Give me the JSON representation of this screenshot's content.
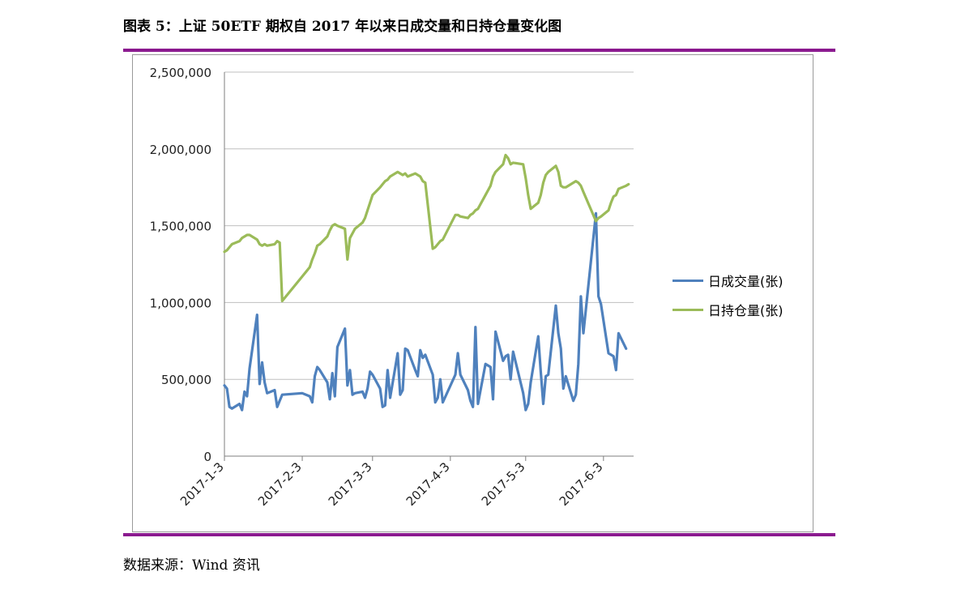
{
  "figure": {
    "title": "图表 5：上证 50ETF 期权自 2017 年以来日成交量和日持仓量变化图",
    "source": "数据来源：Wind 资讯"
  },
  "colors": {
    "accent": "#8b1a8f",
    "volume": "#4f81bd",
    "open_interest": "#9bbb59",
    "grid": "#bfbfbf",
    "axis": "#7f7f7f"
  },
  "chart_data": {
    "type": "line",
    "title": "",
    "xlabel": "",
    "ylabel": "",
    "ylim": [
      0,
      2500000
    ],
    "yticks": [
      "0",
      "500,000",
      "1,000,000",
      "1,500,000",
      "2,000,000",
      "2,500,000"
    ],
    "ytick_values": [
      0,
      500000,
      1000000,
      1500000,
      2000000,
      2500000
    ],
    "xlim": [
      "2017-01-03",
      "2017-06-15"
    ],
    "xticks": [
      "2017-1-3",
      "2017-2-3",
      "2017-3-3",
      "2017-4-3",
      "2017-5-3",
      "2017-6-3"
    ],
    "xtick_dates": [
      "2017-01-03",
      "2017-02-03",
      "2017-03-03",
      "2017-04-03",
      "2017-05-03",
      "2017-06-03"
    ],
    "grid": "horizontal",
    "legend": "right",
    "series": [
      {
        "name": "日成交量(张)",
        "color": "#4f81bd",
        "points": [
          [
            "2017-01-03",
            460000
          ],
          [
            "2017-01-04",
            440000
          ],
          [
            "2017-01-05",
            320000
          ],
          [
            "2017-01-06",
            310000
          ],
          [
            "2017-01-09",
            340000
          ],
          [
            "2017-01-10",
            300000
          ],
          [
            "2017-01-11",
            420000
          ],
          [
            "2017-01-12",
            390000
          ],
          [
            "2017-01-13",
            570000
          ],
          [
            "2017-01-16",
            920000
          ],
          [
            "2017-01-17",
            470000
          ],
          [
            "2017-01-18",
            610000
          ],
          [
            "2017-01-19",
            480000
          ],
          [
            "2017-01-20",
            410000
          ],
          [
            "2017-01-23",
            430000
          ],
          [
            "2017-01-24",
            320000
          ],
          [
            "2017-01-25",
            360000
          ],
          [
            "2017-01-26",
            400000
          ],
          [
            "2017-02-03",
            410000
          ],
          [
            "2017-02-06",
            390000
          ],
          [
            "2017-02-07",
            350000
          ],
          [
            "2017-02-08",
            520000
          ],
          [
            "2017-02-09",
            580000
          ],
          [
            "2017-02-10",
            560000
          ],
          [
            "2017-02-13",
            480000
          ],
          [
            "2017-02-14",
            370000
          ],
          [
            "2017-02-15",
            540000
          ],
          [
            "2017-02-16",
            390000
          ],
          [
            "2017-02-17",
            710000
          ],
          [
            "2017-02-20",
            830000
          ],
          [
            "2017-02-21",
            460000
          ],
          [
            "2017-02-22",
            560000
          ],
          [
            "2017-02-23",
            400000
          ],
          [
            "2017-02-24",
            410000
          ],
          [
            "2017-02-27",
            420000
          ],
          [
            "2017-02-28",
            380000
          ],
          [
            "2017-03-01",
            440000
          ],
          [
            "2017-03-02",
            550000
          ],
          [
            "2017-03-03",
            530000
          ],
          [
            "2017-03-06",
            440000
          ],
          [
            "2017-03-07",
            320000
          ],
          [
            "2017-03-08",
            330000
          ],
          [
            "2017-03-09",
            560000
          ],
          [
            "2017-03-10",
            380000
          ],
          [
            "2017-03-13",
            670000
          ],
          [
            "2017-03-14",
            400000
          ],
          [
            "2017-03-15",
            430000
          ],
          [
            "2017-03-16",
            700000
          ],
          [
            "2017-03-17",
            690000
          ],
          [
            "2017-03-20",
            560000
          ],
          [
            "2017-03-21",
            520000
          ],
          [
            "2017-03-22",
            690000
          ],
          [
            "2017-03-23",
            640000
          ],
          [
            "2017-03-24",
            660000
          ],
          [
            "2017-03-27",
            530000
          ],
          [
            "2017-03-28",
            350000
          ],
          [
            "2017-03-29",
            380000
          ],
          [
            "2017-03-30",
            500000
          ],
          [
            "2017-03-31",
            350000
          ],
          [
            "2017-04-05",
            530000
          ],
          [
            "2017-04-06",
            670000
          ],
          [
            "2017-04-07",
            530000
          ],
          [
            "2017-04-10",
            430000
          ],
          [
            "2017-04-11",
            360000
          ],
          [
            "2017-04-12",
            320000
          ],
          [
            "2017-04-13",
            840000
          ],
          [
            "2017-04-14",
            340000
          ],
          [
            "2017-04-17",
            600000
          ],
          [
            "2017-04-18",
            590000
          ],
          [
            "2017-04-19",
            580000
          ],
          [
            "2017-04-20",
            370000
          ],
          [
            "2017-04-21",
            810000
          ],
          [
            "2017-04-24",
            620000
          ],
          [
            "2017-04-25",
            650000
          ],
          [
            "2017-04-26",
            660000
          ],
          [
            "2017-04-27",
            500000
          ],
          [
            "2017-04-28",
            680000
          ],
          [
            "2017-05-02",
            410000
          ],
          [
            "2017-05-03",
            300000
          ],
          [
            "2017-05-04",
            340000
          ],
          [
            "2017-05-05",
            480000
          ],
          [
            "2017-05-08",
            780000
          ],
          [
            "2017-05-09",
            550000
          ],
          [
            "2017-05-10",
            340000
          ],
          [
            "2017-05-11",
            520000
          ],
          [
            "2017-05-12",
            530000
          ],
          [
            "2017-05-15",
            980000
          ],
          [
            "2017-05-16",
            800000
          ],
          [
            "2017-05-17",
            700000
          ],
          [
            "2017-05-18",
            440000
          ],
          [
            "2017-05-19",
            520000
          ],
          [
            "2017-05-22",
            360000
          ],
          [
            "2017-05-23",
            400000
          ],
          [
            "2017-05-24",
            600000
          ],
          [
            "2017-05-25",
            1040000
          ],
          [
            "2017-05-26",
            800000
          ],
          [
            "2017-05-31",
            1580000
          ],
          [
            "2017-06-01",
            1040000
          ],
          [
            "2017-06-02",
            990000
          ],
          [
            "2017-06-05",
            670000
          ],
          [
            "2017-06-06",
            660000
          ],
          [
            "2017-06-07",
            650000
          ],
          [
            "2017-06-08",
            560000
          ],
          [
            "2017-06-09",
            800000
          ],
          [
            "2017-06-12",
            700000
          ]
        ]
      },
      {
        "name": "日持仓量(张)",
        "color": "#9bbb59",
        "points": [
          [
            "2017-01-03",
            1330000
          ],
          [
            "2017-01-04",
            1340000
          ],
          [
            "2017-01-05",
            1360000
          ],
          [
            "2017-01-06",
            1380000
          ],
          [
            "2017-01-09",
            1400000
          ],
          [
            "2017-01-10",
            1420000
          ],
          [
            "2017-01-11",
            1430000
          ],
          [
            "2017-01-12",
            1440000
          ],
          [
            "2017-01-13",
            1440000
          ],
          [
            "2017-01-16",
            1410000
          ],
          [
            "2017-01-17",
            1380000
          ],
          [
            "2017-01-18",
            1370000
          ],
          [
            "2017-01-19",
            1380000
          ],
          [
            "2017-01-20",
            1370000
          ],
          [
            "2017-01-23",
            1380000
          ],
          [
            "2017-01-24",
            1400000
          ],
          [
            "2017-01-25",
            1390000
          ],
          [
            "2017-01-26",
            1010000
          ],
          [
            "2017-02-03",
            1170000
          ],
          [
            "2017-02-06",
            1230000
          ],
          [
            "2017-02-07",
            1280000
          ],
          [
            "2017-02-08",
            1320000
          ],
          [
            "2017-02-09",
            1370000
          ],
          [
            "2017-02-10",
            1380000
          ],
          [
            "2017-02-13",
            1430000
          ],
          [
            "2017-02-14",
            1470000
          ],
          [
            "2017-02-15",
            1500000
          ],
          [
            "2017-02-16",
            1510000
          ],
          [
            "2017-02-17",
            1500000
          ],
          [
            "2017-02-20",
            1480000
          ],
          [
            "2017-02-21",
            1280000
          ],
          [
            "2017-02-22",
            1420000
          ],
          [
            "2017-02-23",
            1450000
          ],
          [
            "2017-02-24",
            1480000
          ],
          [
            "2017-02-27",
            1520000
          ],
          [
            "2017-02-28",
            1550000
          ],
          [
            "2017-03-01",
            1600000
          ],
          [
            "2017-03-02",
            1650000
          ],
          [
            "2017-03-03",
            1700000
          ],
          [
            "2017-03-06",
            1750000
          ],
          [
            "2017-03-07",
            1770000
          ],
          [
            "2017-03-08",
            1790000
          ],
          [
            "2017-03-09",
            1800000
          ],
          [
            "2017-03-10",
            1820000
          ],
          [
            "2017-03-13",
            1850000
          ],
          [
            "2017-03-14",
            1840000
          ],
          [
            "2017-03-15",
            1830000
          ],
          [
            "2017-03-16",
            1840000
          ],
          [
            "2017-03-17",
            1820000
          ],
          [
            "2017-03-20",
            1840000
          ],
          [
            "2017-03-21",
            1830000
          ],
          [
            "2017-03-22",
            1820000
          ],
          [
            "2017-03-23",
            1790000
          ],
          [
            "2017-03-24",
            1780000
          ],
          [
            "2017-03-27",
            1350000
          ],
          [
            "2017-03-28",
            1360000
          ],
          [
            "2017-03-29",
            1380000
          ],
          [
            "2017-03-30",
            1400000
          ],
          [
            "2017-03-31",
            1410000
          ],
          [
            "2017-04-05",
            1570000
          ],
          [
            "2017-04-06",
            1570000
          ],
          [
            "2017-04-07",
            1560000
          ],
          [
            "2017-04-10",
            1550000
          ],
          [
            "2017-04-11",
            1570000
          ],
          [
            "2017-04-12",
            1580000
          ],
          [
            "2017-04-13",
            1600000
          ],
          [
            "2017-04-14",
            1610000
          ],
          [
            "2017-04-17",
            1700000
          ],
          [
            "2017-04-18",
            1730000
          ],
          [
            "2017-04-19",
            1760000
          ],
          [
            "2017-04-20",
            1820000
          ],
          [
            "2017-04-21",
            1850000
          ],
          [
            "2017-04-24",
            1900000
          ],
          [
            "2017-04-25",
            1960000
          ],
          [
            "2017-04-26",
            1940000
          ],
          [
            "2017-04-27",
            1900000
          ],
          [
            "2017-04-28",
            1910000
          ],
          [
            "2017-05-02",
            1900000
          ],
          [
            "2017-05-03",
            1810000
          ],
          [
            "2017-05-04",
            1700000
          ],
          [
            "2017-05-05",
            1610000
          ],
          [
            "2017-05-08",
            1650000
          ],
          [
            "2017-05-09",
            1700000
          ],
          [
            "2017-05-10",
            1780000
          ],
          [
            "2017-05-11",
            1830000
          ],
          [
            "2017-05-12",
            1850000
          ],
          [
            "2017-05-15",
            1890000
          ],
          [
            "2017-05-16",
            1850000
          ],
          [
            "2017-05-17",
            1760000
          ],
          [
            "2017-05-18",
            1750000
          ],
          [
            "2017-05-19",
            1750000
          ],
          [
            "2017-05-22",
            1780000
          ],
          [
            "2017-05-23",
            1790000
          ],
          [
            "2017-05-24",
            1780000
          ],
          [
            "2017-05-25",
            1760000
          ],
          [
            "2017-05-26",
            1720000
          ],
          [
            "2017-05-31",
            1530000
          ],
          [
            "2017-06-01",
            1550000
          ],
          [
            "2017-06-02",
            1560000
          ],
          [
            "2017-06-05",
            1600000
          ],
          [
            "2017-06-06",
            1650000
          ],
          [
            "2017-06-07",
            1690000
          ],
          [
            "2017-06-08",
            1700000
          ],
          [
            "2017-06-09",
            1740000
          ],
          [
            "2017-06-12",
            1760000
          ],
          [
            "2017-06-13",
            1770000
          ]
        ]
      }
    ]
  }
}
